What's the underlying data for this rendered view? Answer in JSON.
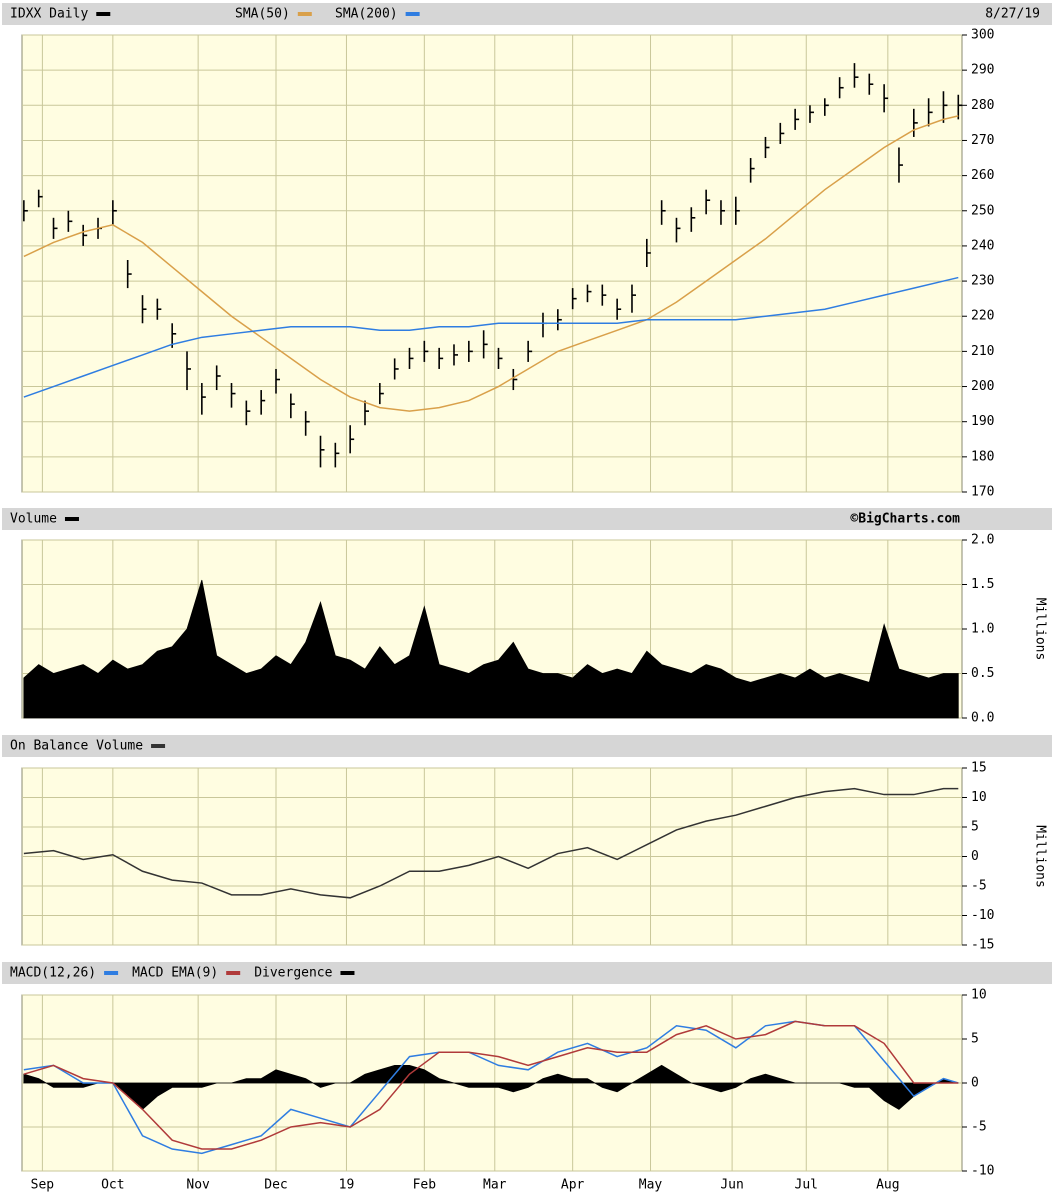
{
  "chart_data": [
    {
      "type": "hlc",
      "date": "8/27/19",
      "xlim": [
        -0.5,
        253
      ],
      "ylim": [
        170,
        300
      ],
      "yticks": [
        170,
        180,
        190,
        200,
        210,
        220,
        230,
        240,
        250,
        260,
        270,
        280,
        290,
        300
      ],
      "grid": true,
      "series": [
        {
          "name": "IDXX Daily",
          "color": "#000000",
          "x": [
            0,
            4,
            8,
            12,
            16,
            20,
            24,
            28,
            32,
            36,
            40,
            44,
            48,
            52,
            56,
            60,
            64,
            68,
            72,
            76,
            80,
            84,
            88,
            92,
            96,
            100,
            104,
            108,
            112,
            116,
            120,
            124,
            128,
            132,
            136,
            140,
            144,
            148,
            152,
            156,
            160,
            164,
            168,
            172,
            176,
            180,
            184,
            188,
            192,
            196,
            200,
            204,
            208,
            212,
            216,
            220,
            224,
            228,
            232,
            236,
            240,
            244,
            248,
            252
          ],
          "high": [
            253,
            256,
            248,
            250,
            246,
            248,
            253,
            236,
            226,
            225,
            218,
            210,
            201,
            206,
            201,
            196,
            199,
            205,
            198,
            193,
            186,
            184,
            189,
            196,
            201,
            208,
            211,
            213,
            211,
            212,
            213,
            216,
            211,
            205,
            213,
            221,
            222,
            228,
            229,
            229,
            225,
            229,
            242,
            253,
            248,
            251,
            256,
            253,
            254,
            265,
            271,
            275,
            279,
            280,
            282,
            288,
            292,
            289,
            286,
            268,
            279,
            282,
            284,
            283
          ],
          "low": [
            247,
            251,
            242,
            244,
            240,
            242,
            246,
            228,
            218,
            219,
            211,
            199,
            192,
            199,
            194,
            189,
            192,
            198,
            191,
            186,
            177,
            177,
            181,
            189,
            195,
            202,
            205,
            207,
            205,
            206,
            207,
            208,
            205,
            199,
            207,
            214,
            216,
            222,
            224,
            223,
            219,
            221,
            234,
            246,
            241,
            244,
            249,
            246,
            246,
            258,
            265,
            269,
            273,
            275,
            277,
            282,
            285,
            283,
            278,
            258,
            271,
            274,
            275,
            276
          ],
          "close": [
            250,
            254,
            245,
            247,
            243,
            245,
            250,
            232,
            222,
            222,
            215,
            205,
            197,
            203,
            198,
            193,
            196,
            202,
            195,
            190,
            182,
            181,
            185,
            193,
            198,
            205,
            208,
            210,
            208,
            209,
            210,
            212,
            208,
            202,
            210,
            218,
            219,
            225,
            227,
            226,
            222,
            226,
            238,
            250,
            245,
            248,
            253,
            250,
            250,
            262,
            268,
            272,
            276,
            278,
            280,
            285,
            288,
            286,
            282,
            263,
            275,
            278,
            280,
            280
          ]
        },
        {
          "name": "SMA(50)",
          "type": "line",
          "color": "#d9a04a",
          "x": [
            0,
            8,
            16,
            24,
            32,
            40,
            48,
            56,
            64,
            72,
            80,
            88,
            96,
            104,
            112,
            120,
            128,
            136,
            144,
            152,
            160,
            168,
            176,
            184,
            192,
            200,
            208,
            216,
            224,
            232,
            240,
            248,
            252
          ],
          "values": [
            237,
            241,
            244,
            246,
            241,
            234,
            227,
            220,
            214,
            208,
            202,
            197,
            194,
            193,
            194,
            196,
            200,
            205,
            210,
            213,
            216,
            219,
            224,
            230,
            236,
            242,
            249,
            256,
            262,
            268,
            273,
            276,
            277
          ]
        },
        {
          "name": "SMA(200)",
          "type": "line",
          "color": "#2f7de1",
          "x": [
            0,
            8,
            16,
            24,
            32,
            40,
            48,
            56,
            64,
            72,
            80,
            88,
            96,
            104,
            112,
            120,
            128,
            136,
            144,
            152,
            160,
            168,
            176,
            184,
            192,
            200,
            208,
            216,
            224,
            232,
            240,
            248,
            252
          ],
          "values": [
            197,
            200,
            203,
            206,
            209,
            212,
            214,
            215,
            216,
            217,
            217,
            217,
            216,
            216,
            217,
            217,
            218,
            218,
            218,
            218,
            218,
            219,
            219,
            219,
            219,
            220,
            221,
            222,
            224,
            226,
            228,
            230,
            231
          ]
        }
      ]
    },
    {
      "type": "area",
      "credit": "©BigCharts.com",
      "y_label": "Millions",
      "xlim": [
        -0.5,
        253
      ],
      "ylim": [
        0,
        2
      ],
      "yticks": [
        {
          "value": 0,
          "label": "0.0"
        },
        0.5,
        {
          "value": 1,
          "label": "1.0"
        },
        1.5,
        {
          "value": 2,
          "label": "2.0"
        }
      ],
      "grid": true,
      "series": [
        {
          "name": "Volume",
          "color": "#000000",
          "x": [
            0,
            4,
            8,
            12,
            16,
            20,
            24,
            28,
            32,
            36,
            40,
            44,
            48,
            52,
            56,
            60,
            64,
            68,
            72,
            76,
            80,
            84,
            88,
            92,
            96,
            100,
            104,
            108,
            112,
            116,
            120,
            124,
            128,
            132,
            136,
            140,
            144,
            148,
            152,
            156,
            160,
            164,
            168,
            172,
            176,
            180,
            184,
            188,
            192,
            196,
            200,
            204,
            208,
            212,
            216,
            220,
            224,
            228,
            232,
            236,
            240,
            244,
            248,
            252
          ],
          "values": [
            0.45,
            0.6,
            0.5,
            0.55,
            0.6,
            0.5,
            0.65,
            0.55,
            0.6,
            0.75,
            0.8,
            1.0,
            1.55,
            0.7,
            0.6,
            0.5,
            0.55,
            0.7,
            0.6,
            0.85,
            1.3,
            0.7,
            0.65,
            0.55,
            0.8,
            0.6,
            0.7,
            1.25,
            0.6,
            0.55,
            0.5,
            0.6,
            0.65,
            0.85,
            0.55,
            0.5,
            0.5,
            0.45,
            0.6,
            0.5,
            0.55,
            0.5,
            0.75,
            0.6,
            0.55,
            0.5,
            0.6,
            0.55,
            0.45,
            0.4,
            0.45,
            0.5,
            0.45,
            0.55,
            0.45,
            0.5,
            0.45,
            0.4,
            1.05,
            0.55,
            0.5,
            0.45,
            0.5,
            0.5
          ]
        }
      ]
    },
    {
      "type": "line",
      "y_label": "Millions",
      "xlim": [
        -0.5,
        253
      ],
      "ylim": [
        -15,
        15
      ],
      "yticks": [
        -15,
        -10,
        -5,
        0,
        5,
        10,
        15
      ],
      "grid": true,
      "series": [
        {
          "name": "On Balance Volume",
          "color": "#333333",
          "x": [
            0,
            8,
            16,
            24,
            32,
            40,
            48,
            56,
            64,
            72,
            80,
            88,
            96,
            104,
            112,
            120,
            128,
            136,
            144,
            152,
            160,
            168,
            176,
            184,
            192,
            200,
            208,
            216,
            224,
            232,
            240,
            248,
            252
          ],
          "values": [
            0.5,
            1,
            -0.5,
            0.3,
            -2.5,
            -4,
            -4.5,
            -6.5,
            -6.5,
            -5.5,
            -6.5,
            -7,
            -5,
            -2.5,
            -2.5,
            -1.5,
            0,
            -2,
            0.5,
            1.5,
            -0.5,
            2,
            4.5,
            6,
            7,
            8.5,
            10,
            11,
            11.5,
            10.5,
            10.5,
            11.5,
            11.5
          ]
        }
      ]
    },
    {
      "type": "line",
      "xlim": [
        -0.5,
        253
      ],
      "ylim": [
        -10,
        10
      ],
      "yticks": [
        -10,
        -5,
        0,
        5,
        10
      ],
      "grid": true,
      "xticks": [
        {
          "value": 5,
          "label": "Sep"
        },
        {
          "value": 24,
          "label": "Oct"
        },
        {
          "value": 47,
          "label": "Nov"
        },
        {
          "value": 68,
          "label": "Dec"
        },
        {
          "value": 87,
          "label": "19"
        },
        {
          "value": 108,
          "label": "Feb"
        },
        {
          "value": 127,
          "label": "Mar"
        },
        {
          "value": 148,
          "label": "Apr"
        },
        {
          "value": 169,
          "label": "May"
        },
        {
          "value": 191,
          "label": "Jun"
        },
        {
          "value": 211,
          "label": "Jul"
        },
        {
          "value": 233,
          "label": "Aug"
        }
      ],
      "series": [
        {
          "name": "MACD(12,26)",
          "color": "#2f7de1",
          "x": [
            0,
            8,
            16,
            24,
            32,
            40,
            48,
            56,
            64,
            72,
            80,
            88,
            96,
            104,
            112,
            120,
            128,
            136,
            144,
            152,
            160,
            168,
            176,
            184,
            192,
            200,
            208,
            216,
            224,
            232,
            240,
            248,
            252
          ],
          "values": [
            1.5,
            2,
            0,
            0,
            -6,
            -7.5,
            -8,
            -7,
            -6,
            -3,
            -4,
            -5,
            -1,
            3,
            3.5,
            3.5,
            2,
            1.5,
            3.5,
            4.5,
            3,
            4,
            6.5,
            6,
            4,
            6.5,
            7,
            6.5,
            6.5,
            2.5,
            -1.5,
            0.5,
            0
          ]
        },
        {
          "name": "MACD EMA(9)",
          "color": "#b03a3a",
          "x": [
            0,
            8,
            16,
            24,
            32,
            40,
            48,
            56,
            64,
            72,
            80,
            88,
            96,
            104,
            112,
            120,
            128,
            136,
            144,
            152,
            160,
            168,
            176,
            184,
            192,
            200,
            208,
            216,
            224,
            232,
            240,
            248,
            252
          ],
          "values": [
            1,
            2,
            0.5,
            0,
            -3,
            -6.5,
            -7.5,
            -7.5,
            -6.5,
            -5,
            -4.5,
            -5,
            -3,
            1,
            3.5,
            3.5,
            3,
            2,
            3,
            4,
            3.5,
            3.5,
            5.5,
            6.5,
            5,
            5.5,
            7,
            6.5,
            6.5,
            4.5,
            0,
            0,
            0
          ]
        },
        {
          "name": "Divergence",
          "type": "area",
          "color": "#000000",
          "x": [
            0,
            4,
            8,
            12,
            16,
            20,
            24,
            28,
            32,
            36,
            40,
            44,
            48,
            52,
            56,
            60,
            64,
            68,
            72,
            76,
            80,
            84,
            88,
            92,
            96,
            100,
            104,
            108,
            112,
            116,
            120,
            124,
            128,
            132,
            136,
            140,
            144,
            148,
            152,
            156,
            160,
            164,
            168,
            172,
            176,
            180,
            184,
            188,
            192,
            196,
            200,
            204,
            208,
            212,
            216,
            220,
            224,
            228,
            232,
            236,
            240,
            244,
            248,
            252
          ],
          "values": [
            1,
            0.5,
            -0.5,
            -0.5,
            -0.5,
            0,
            0,
            -1.5,
            -3,
            -1.5,
            -0.5,
            -0.5,
            -0.5,
            0,
            0,
            0.5,
            0.5,
            1.5,
            1,
            0.5,
            -0.5,
            0,
            0,
            1,
            1.5,
            2,
            2,
            1.5,
            0.5,
            0,
            -0.5,
            -0.5,
            -0.5,
            -1,
            -0.5,
            0.5,
            1,
            0.5,
            0.5,
            -0.5,
            -1,
            0,
            1,
            2,
            1,
            0,
            -0.5,
            -1,
            -0.5,
            0.5,
            1,
            0.5,
            0,
            0,
            0,
            0,
            -0.5,
            -0.5,
            -2,
            -3,
            -1.5,
            -0.5,
            0.5,
            0
          ]
        }
      ]
    }
  ]
}
